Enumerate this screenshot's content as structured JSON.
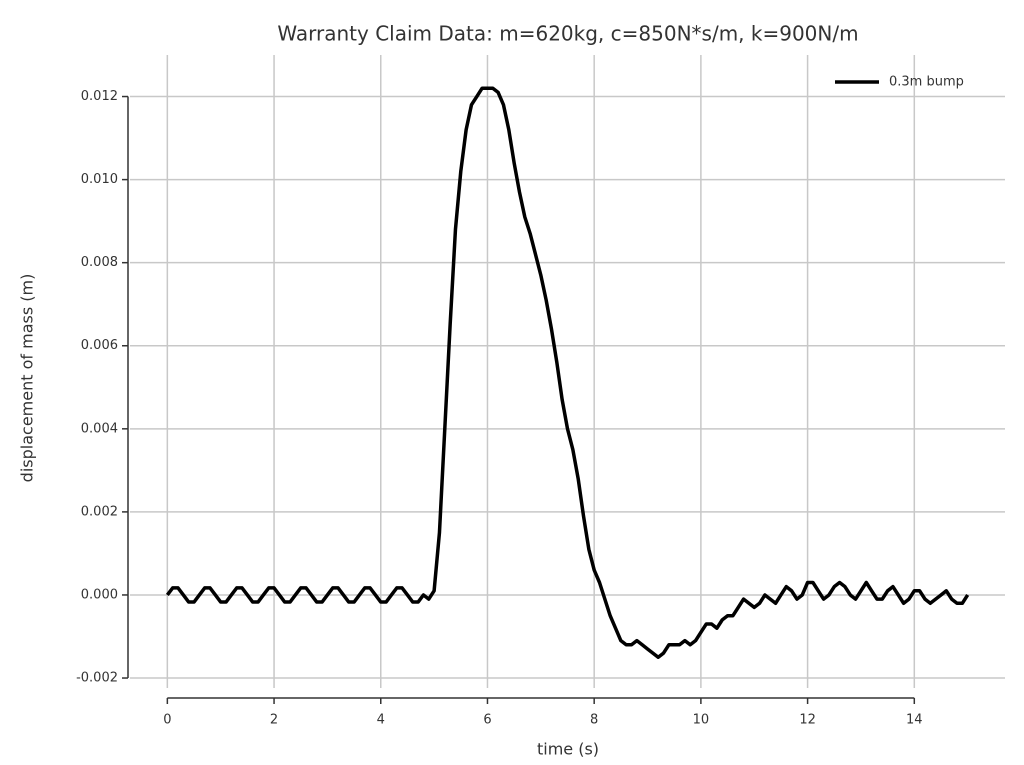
{
  "chart_data": {
    "type": "line",
    "title": "Warranty Claim Data: m=620kg, c=850N*s/m, k=900N/m",
    "xlabel": "time (s)",
    "ylabel": "displacement of mass (m)",
    "x": [
      0,
      0.1,
      0.2,
      0.3,
      0.4,
      0.5,
      0.6,
      0.7,
      0.8,
      0.9,
      1,
      1.1,
      1.2,
      1.3,
      1.4,
      1.5,
      1.6,
      1.7,
      1.8,
      1.9,
      2,
      2.1,
      2.2,
      2.3,
      2.4,
      2.5,
      2.6,
      2.7,
      2.8,
      2.9,
      3,
      3.1,
      3.2,
      3.3,
      3.4,
      3.5,
      3.6,
      3.7,
      3.8,
      3.9,
      4,
      4.1,
      4.2,
      4.3,
      4.4,
      4.5,
      4.6,
      4.7,
      4.8,
      4.9,
      5,
      5.1,
      5.2,
      5.3,
      5.4,
      5.5,
      5.6,
      5.7,
      5.8,
      5.9,
      6,
      6.1,
      6.2,
      6.3,
      6.4,
      6.5,
      6.6,
      6.7,
      6.8,
      6.9,
      7,
      7.1,
      7.2,
      7.3,
      7.4,
      7.5,
      7.6,
      7.7,
      7.8,
      7.9,
      8,
      8.1,
      8.2,
      8.3,
      8.4,
      8.5,
      8.6,
      8.7,
      8.8,
      8.9,
      9,
      9.1,
      9.2,
      9.3,
      9.4,
      9.5,
      9.6,
      9.7,
      9.8,
      9.9,
      10,
      10.1,
      10.2,
      10.3,
      10.4,
      10.5,
      10.6,
      10.7,
      10.8,
      10.9,
      11,
      11.1,
      11.2,
      11.3,
      11.4,
      11.5,
      11.6,
      11.7,
      11.8,
      11.9,
      12,
      12.1,
      12.2,
      12.3,
      12.4,
      12.5,
      12.6,
      12.7,
      12.8,
      12.9,
      13,
      13.1,
      13.2,
      13.3,
      13.4,
      13.5,
      13.6,
      13.7,
      13.8,
      13.9,
      14,
      14.1,
      14.2,
      14.3,
      14.4,
      14.5,
      14.6,
      14.7,
      14.8,
      14.9,
      15
    ],
    "series": [
      {
        "name": "0.3m bump",
        "color": "#000000",
        "values": [
          0,
          0.00017,
          0.00017,
          0,
          -0.00017,
          -0.00017,
          0,
          0.00017,
          0.00017,
          0,
          -0.00017,
          -0.00017,
          0,
          0.00017,
          0.00017,
          0,
          -0.00017,
          -0.00017,
          0,
          0.00017,
          0.00017,
          0,
          -0.00017,
          -0.00017,
          0,
          0.00017,
          0.00017,
          0,
          -0.00017,
          -0.00017,
          0,
          0.00017,
          0.00017,
          0,
          -0.00017,
          -0.00017,
          0,
          0.00017,
          0.00017,
          0,
          -0.00017,
          -0.00017,
          0,
          0.00017,
          0.00017,
          0,
          -0.00017,
          -0.00017,
          0,
          -0.0001,
          0.0001,
          0.0015,
          0.004,
          0.0065,
          0.0088,
          0.0102,
          0.0112,
          0.0118,
          0.012,
          0.0122,
          0.0122,
          0.0122,
          0.0121,
          0.0118,
          0.0112,
          0.0104,
          0.0097,
          0.0091,
          0.0087,
          0.0082,
          0.0077,
          0.0071,
          0.0064,
          0.0056,
          0.0047,
          0.004,
          0.0035,
          0.0028,
          0.0019,
          0.0011,
          0.0006,
          0.0003,
          -0.0001,
          -0.0005,
          -0.0008,
          -0.0011,
          -0.0012,
          -0.0012,
          -0.0011,
          -0.0012,
          -0.0013,
          -0.0014,
          -0.0015,
          -0.0014,
          -0.0012,
          -0.0012,
          -0.0012,
          -0.0011,
          -0.0012,
          -0.0011,
          -0.0009,
          -0.0007,
          -0.0007,
          -0.0008,
          -0.0006,
          -0.0005,
          -0.0005,
          -0.0003,
          -0.0001,
          -0.0002,
          -0.0003,
          -0.0002,
          0,
          -0.0001,
          -0.0002,
          0,
          0.0002,
          0.0001,
          -0.0001,
          0,
          0.0003,
          0.0003,
          0.0001,
          -0.0001,
          0,
          0.0002,
          0.0003,
          0.0002,
          0,
          -0.0001,
          0.0001,
          0.0003,
          0.0001,
          -0.0001,
          -0.0001,
          0.0001,
          0.0002,
          0,
          -0.0002,
          -0.0001,
          0.0001,
          0.0001,
          -0.0001,
          -0.0002,
          -0.0001,
          0,
          0.0001,
          -0.0001,
          -0.0002,
          -0.0002,
          0
        ]
      }
    ],
    "xlim": [
      -0.7,
      15.7
    ],
    "ylim": [
      -0.00224,
      0.013
    ],
    "xticks": [
      0,
      2,
      4,
      6,
      8,
      10,
      12,
      14
    ],
    "yticks": [
      -0.002,
      {
        "value": 0,
        "label": "0.000"
      },
      0.002,
      0.004,
      0.006,
      0.008,
      {
        "value": 0.01,
        "label": "0.010"
      },
      0.012
    ],
    "grid": true,
    "legend": "upper right"
  }
}
